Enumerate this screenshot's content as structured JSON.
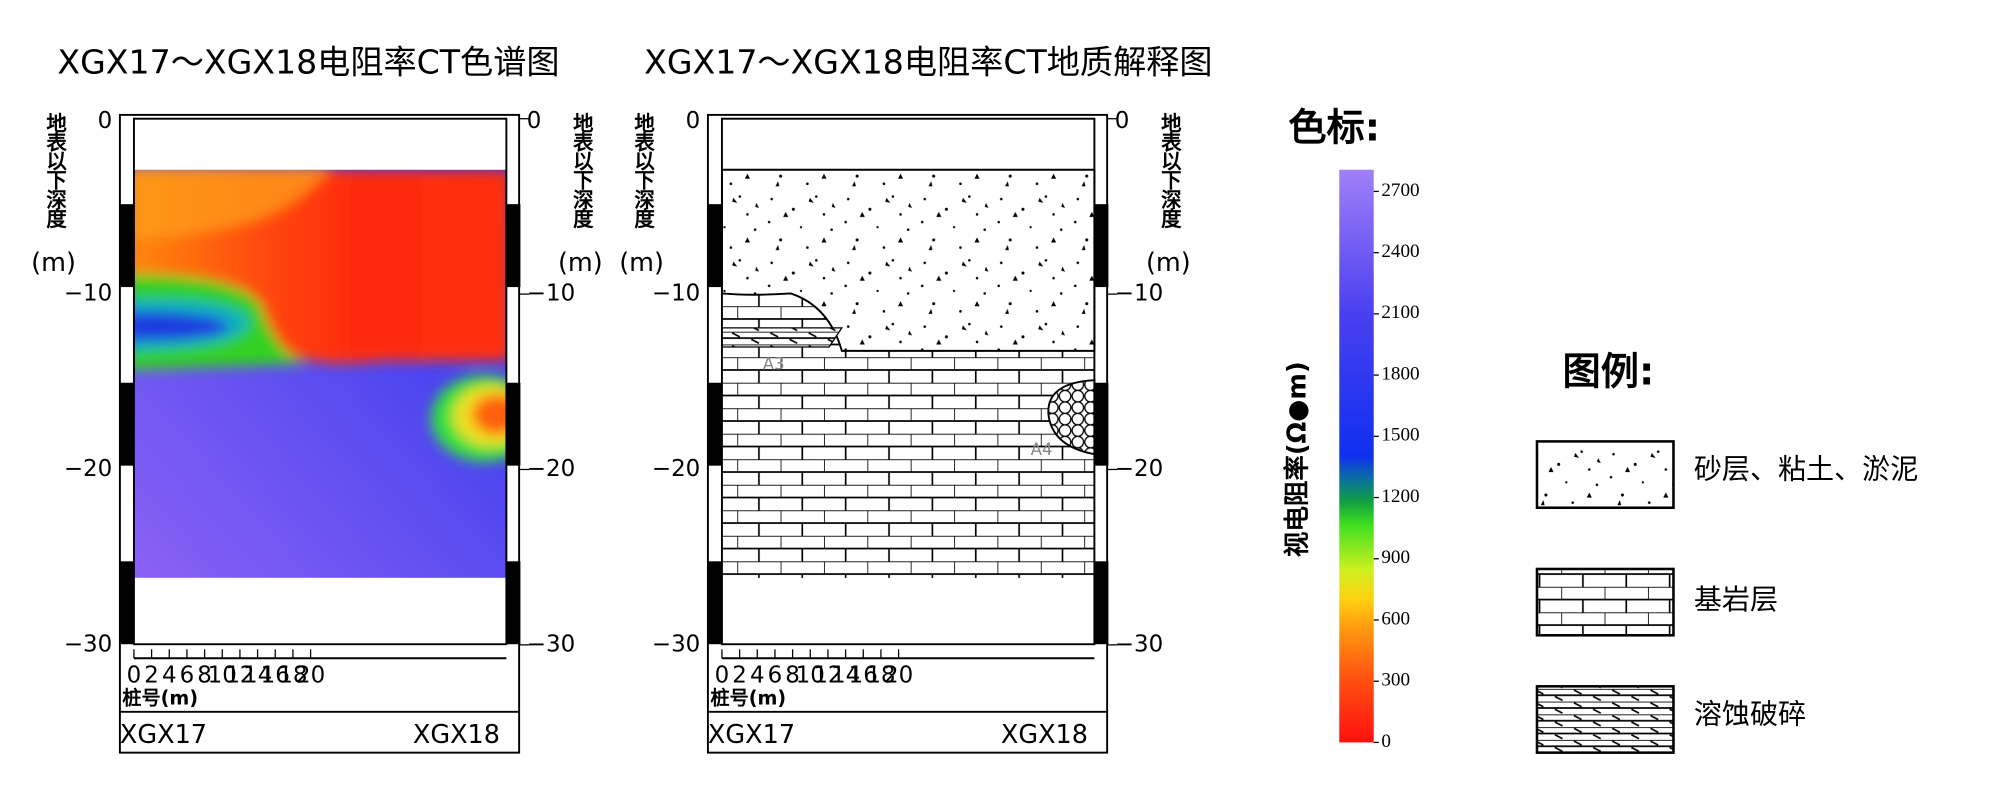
{
  "panels": [
    {
      "title": "XGX17～XGX18电阻率CT色谱图",
      "depth_label": "地表以下深度",
      "depth_unit": "(m)",
      "depth_ticks": [
        "0",
        "−10",
        "−20",
        "−30"
      ],
      "x_ticks": [
        "0",
        "2",
        "4",
        "6",
        "8",
        "10",
        "12",
        "14",
        "16",
        "18",
        "20"
      ],
      "x_label": "桩号(m)",
      "left_station": "XGX17",
      "right_station": "XGX18"
    },
    {
      "title": "XGX17～XGX18电阻率CT地质解释图",
      "depth_label": "地表以下深度",
      "depth_unit": "(m)",
      "depth_ticks": [
        "0",
        "−10",
        "−20",
        "−30"
      ],
      "x_ticks": [
        "0",
        "2",
        "4",
        "6",
        "8",
        "10",
        "12",
        "14",
        "16",
        "18",
        "20"
      ],
      "x_label": "桩号(m)",
      "left_station": "XGX17",
      "right_station": "XGX18",
      "annotations": [
        "A3",
        "A4"
      ]
    }
  ],
  "colorbar": {
    "title": "色标:",
    "label": "视电阻率(Ω●m)",
    "ticks": [
      "0",
      "300",
      "600",
      "900",
      "1200",
      "1500",
      "1800",
      "2100",
      "2400",
      "2700"
    ]
  },
  "legend": {
    "title": "图例:",
    "items": [
      "砂层、粘土、淤泥",
      "基岩层",
      "溶蚀破碎"
    ]
  }
}
